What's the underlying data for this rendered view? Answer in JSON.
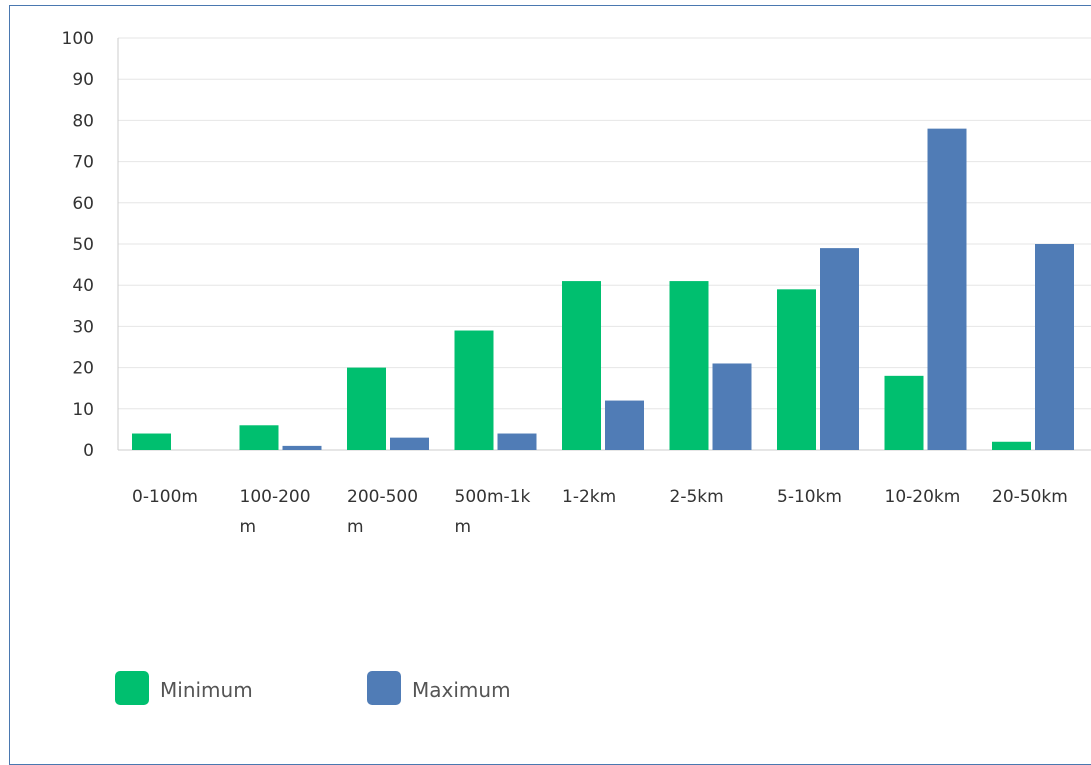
{
  "chart_data": {
    "type": "bar",
    "categories": [
      "0-100m",
      "100-200m",
      "200-500m",
      "500m-1km",
      "1-2km",
      "2-5km",
      "5-10km",
      "10-20km",
      "20-50km"
    ],
    "category_label_lines": [
      [
        "0-100m"
      ],
      [
        "100-200",
        "m"
      ],
      [
        "200-500",
        "m"
      ],
      [
        "500m-1k",
        "m"
      ],
      [
        "1-2km"
      ],
      [
        "2-5km"
      ],
      [
        "5-10km"
      ],
      [
        "10-20km"
      ],
      [
        "20-50km"
      ]
    ],
    "series": [
      {
        "name": "Minimum",
        "color": "#00bf6f",
        "values": [
          4,
          6,
          20,
          29,
          41,
          41,
          39,
          18,
          2
        ]
      },
      {
        "name": "Maximum",
        "color": "#507cb6",
        "values": [
          0,
          1,
          3,
          4,
          12,
          21,
          49,
          78,
          50
        ]
      }
    ],
    "ylim": [
      0,
      100
    ],
    "yticks": [
      0,
      10,
      20,
      30,
      40,
      50,
      60,
      70,
      80,
      90,
      100
    ],
    "grid": true,
    "legend": "bottom-left",
    "title": "",
    "xlabel": "",
    "ylabel": ""
  }
}
